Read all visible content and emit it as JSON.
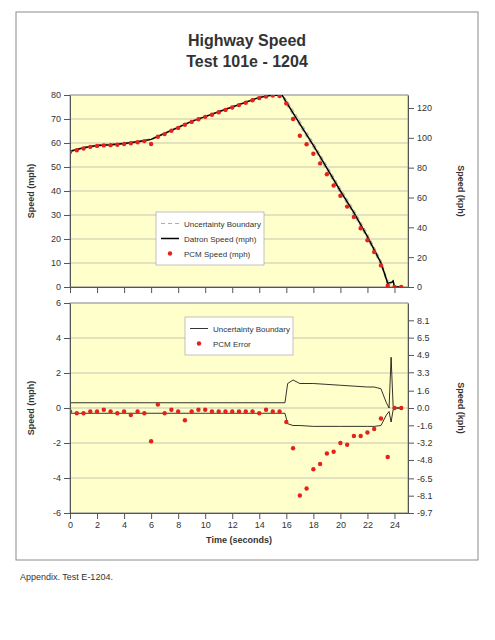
{
  "chart_data": [
    {
      "type": "line",
      "title": "Highway Speed",
      "subtitle": "Test 101e - 1204",
      "y_label": "Speed (mph)",
      "y2_label": "Speed (kph)",
      "xlim": [
        0,
        25
      ],
      "xticks": [
        0,
        2,
        4,
        6,
        8,
        10,
        12,
        14,
        16,
        18,
        20,
        22,
        24
      ],
      "ylim": [
        0,
        80
      ],
      "yticks": [
        0,
        10,
        20,
        30,
        40,
        50,
        60,
        70,
        80
      ],
      "y2lim": [
        0,
        128.7
      ],
      "y2ticks": [
        0,
        20,
        40,
        60,
        80,
        100,
        120
      ],
      "grid": true,
      "legend": "center",
      "tick_labels": "y",
      "series": [
        {
          "name": "Uncertainty Boundary",
          "type": "band",
          "color": "#999999",
          "line_style": "dashed",
          "x": [
            0,
            1,
            2,
            3,
            4,
            5,
            6,
            7,
            8,
            9,
            10,
            11,
            12,
            13,
            14,
            15,
            15.7,
            16,
            17,
            18,
            19,
            20,
            21,
            22,
            23,
            23.3,
            23.5,
            23.8,
            23.9,
            24,
            24.5
          ],
          "upper": [
            56.8,
            58.3,
            59.3,
            59.6,
            60.1,
            60.8,
            61.8,
            64.3,
            66.8,
            69.3,
            71.3,
            73.3,
            75.3,
            77.3,
            79.3,
            80.3,
            80.1,
            78.2,
            69.2,
            60.2,
            50.7,
            41.2,
            32.2,
            22.2,
            11.2,
            6,
            2.5,
            2.3,
            2.8,
            0.3,
            0.3
          ],
          "lower": [
            56.2,
            57.7,
            58.7,
            59,
            59.5,
            60.2,
            61.2,
            63.7,
            66.2,
            68.7,
            70.7,
            72.7,
            74.7,
            76.7,
            78.7,
            79.7,
            79.5,
            76,
            67,
            58,
            48.5,
            39,
            30,
            20,
            9,
            4,
            0.5,
            1.7,
            2.2,
            0,
            0
          ]
        },
        {
          "name": "Datron Speed (mph)",
          "type": "line",
          "color": "#000000",
          "line_style": "solid",
          "x": [
            0,
            1,
            2,
            3,
            4,
            5,
            6,
            7,
            8,
            9,
            10,
            11,
            12,
            13,
            14,
            15,
            15.7,
            16,
            17,
            18,
            19,
            20,
            21,
            22,
            23,
            23.3,
            23.5,
            23.8,
            23.9,
            24,
            24.5
          ],
          "values": [
            56.5,
            58,
            59,
            59.3,
            59.8,
            60.5,
            61.5,
            64,
            66.5,
            69,
            71,
            73,
            75,
            77,
            79,
            80,
            79.8,
            77,
            68,
            59,
            49.5,
            40,
            31,
            21,
            10,
            5,
            1.5,
            2,
            2.5,
            0,
            0
          ]
        },
        {
          "name": "PCM Speed (mph)",
          "type": "scatter",
          "color": "#e3231b",
          "marker": "circle",
          "x": [
            0,
            0.5,
            1,
            1.5,
            2,
            2.5,
            3,
            3.5,
            4,
            4.5,
            5,
            5.5,
            6,
            6.5,
            7,
            7.5,
            8,
            8.5,
            9,
            9.5,
            10,
            10.5,
            11,
            11.5,
            12,
            12.5,
            13,
            13.5,
            14,
            14.5,
            15,
            15.5,
            16,
            16.5,
            17,
            17.5,
            18,
            18.5,
            19,
            19.5,
            20,
            20.5,
            21,
            21.5,
            22,
            22.5,
            23,
            23.5,
            24,
            24.5
          ],
          "values": [
            56.3,
            57,
            57.7,
            58.4,
            58.8,
            59,
            59.1,
            59.3,
            59.6,
            59.9,
            60.3,
            60.8,
            59.6,
            62.6,
            63.7,
            65.1,
            66.3,
            67.6,
            68.8,
            69.9,
            70.9,
            71.8,
            72.8,
            73.8,
            74.8,
            75.8,
            76.8,
            77.8,
            78.7,
            79.4,
            79.8,
            79.6,
            76.5,
            70,
            63,
            59.5,
            55.5,
            51.5,
            47,
            42.3,
            38,
            33.5,
            29.2,
            24.5,
            19.5,
            14.6,
            9,
            0.5,
            0,
            0
          ]
        }
      ]
    },
    {
      "type": "line",
      "x_label": "Time (seconds)",
      "y_label": "Speed (mph)",
      "y2_label": "Speed (kph)",
      "xlim": [
        0,
        25
      ],
      "xticks": [
        0,
        2,
        4,
        6,
        8,
        10,
        12,
        14,
        16,
        18,
        20,
        22,
        24
      ],
      "ylim": [
        -6,
        6
      ],
      "yticks": [
        -6,
        -4,
        -2,
        0,
        2,
        4,
        6
      ],
      "y2lim": [
        -9.7,
        9.7
      ],
      "y2ticks": [
        -9.7,
        -8.1,
        -6.5,
        -4.8,
        -3.2,
        -1.6,
        {
          "value": 0,
          "label": "0.0"
        },
        1.6,
        3.3,
        4.9,
        6.5,
        8.1
      ],
      "grid": true,
      "legend": "top",
      "series": [
        {
          "name": "Uncertainty Boundary",
          "type": "band",
          "color": "#000000",
          "line_style": "solid",
          "x": [
            0,
            2,
            4,
            6,
            8,
            10,
            12,
            14,
            15.9,
            16.1,
            16.5,
            17,
            18,
            19,
            20,
            21,
            22,
            22.5,
            23,
            23.4,
            23.6,
            23.75,
            23.9,
            24,
            24.5
          ],
          "upper": [
            0.3,
            0.3,
            0.3,
            0.3,
            0.3,
            0.3,
            0.3,
            0.3,
            0.3,
            1.4,
            1.6,
            1.4,
            1.4,
            1.35,
            1.3,
            1.25,
            1.2,
            1.2,
            1.1,
            0.3,
            0,
            2.9,
            0.1,
            0,
            0
          ],
          "lower": [
            -0.3,
            -0.3,
            -0.3,
            -0.3,
            -0.3,
            -0.3,
            -0.3,
            -0.3,
            -0.3,
            -0.9,
            -1,
            -1,
            -1.05,
            -1.05,
            -1.05,
            -1.05,
            -1.05,
            -1.05,
            -1,
            -0.4,
            -0.2,
            -0.8,
            -0.1,
            0,
            0
          ]
        },
        {
          "name": "PCM Error",
          "type": "scatter",
          "color": "#e3231b",
          "marker": "circle",
          "x": [
            0,
            0.5,
            1,
            1.5,
            2,
            2.5,
            3,
            3.5,
            4,
            4.5,
            5,
            5.5,
            6,
            6.5,
            7,
            7.5,
            8,
            8.5,
            9,
            9.5,
            10,
            10.5,
            11,
            11.5,
            12,
            12.5,
            13,
            13.5,
            14,
            14.5,
            15,
            15.5,
            16,
            16.5,
            17,
            17.5,
            18,
            18.5,
            19,
            19.5,
            20,
            20.5,
            21,
            21.5,
            22,
            22.5,
            23,
            23.5,
            24,
            24.5
          ],
          "values": [
            -0.2,
            -0.3,
            -0.3,
            -0.2,
            -0.2,
            -0.1,
            -0.2,
            -0.3,
            -0.2,
            -0.4,
            -0.2,
            -0.3,
            -1.9,
            0.2,
            -0.3,
            -0.1,
            -0.2,
            -0.7,
            -0.2,
            -0.1,
            -0.1,
            -0.2,
            -0.2,
            -0.2,
            -0.2,
            -0.2,
            -0.2,
            -0.2,
            -0.3,
            -0.1,
            -0.2,
            -0.2,
            -0.8,
            -2.3,
            -5.0,
            -4.6,
            -3.5,
            -3.2,
            -2.6,
            -2.5,
            -2.0,
            -2.1,
            -1.6,
            -1.6,
            -1.4,
            -1.2,
            -0.6,
            -2.8,
            0,
            0
          ]
        }
      ]
    }
  ],
  "caption": "Appendix. Test E-1204."
}
